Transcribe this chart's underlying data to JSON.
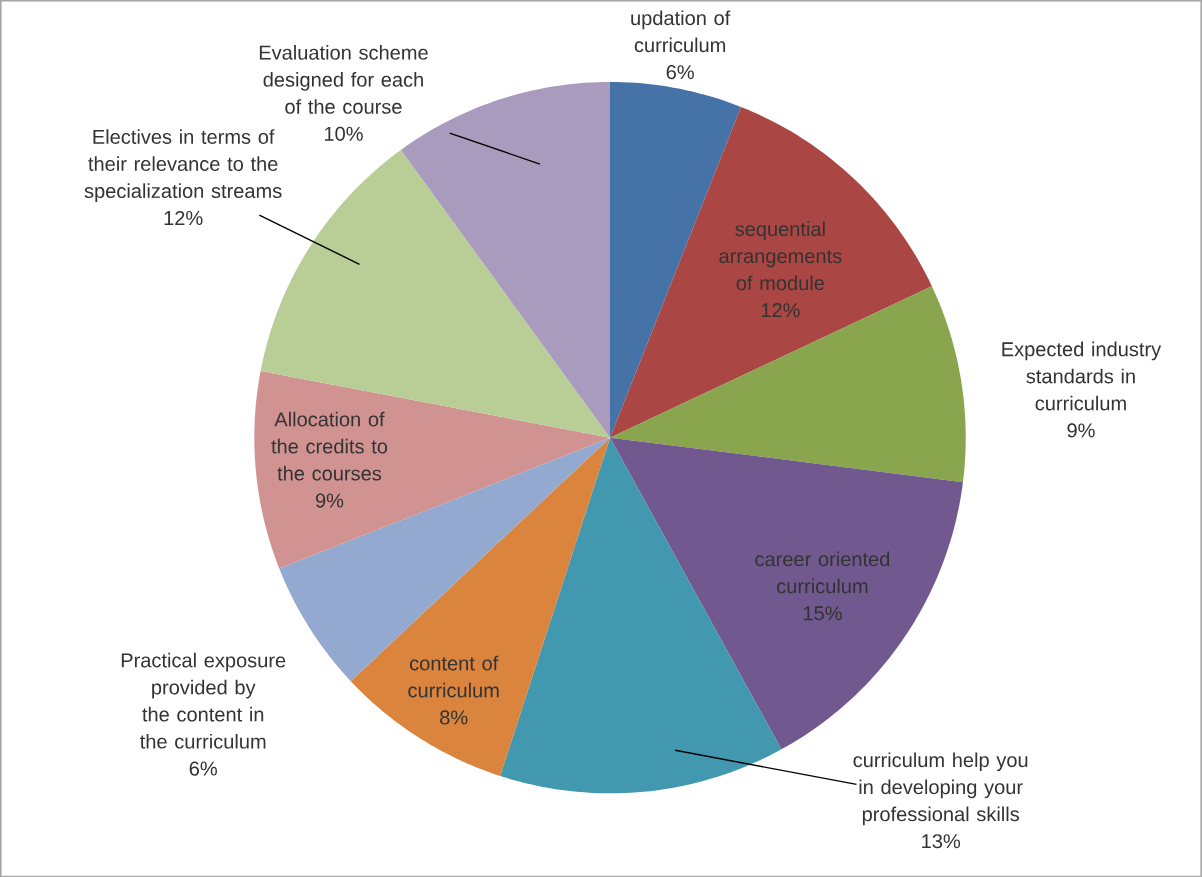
{
  "chart_data": {
    "type": "pie",
    "categories": [
      "updation of curriculum",
      "sequential arrangements of module",
      "Expected industry standards in curriculum",
      "career oriented curriculum",
      "curriculum help you in developing your professional skills",
      "content of curriculum",
      "Practical exposure provided by the content in the curriculum",
      "Allocation of the credits to the courses",
      "Electives in terms of their relevance to the specialization streams",
      "Evaluation scheme designed for each of the course"
    ],
    "values": [
      6,
      12,
      9,
      15,
      13,
      8,
      6,
      9,
      12,
      10
    ],
    "value_labels": [
      "6%",
      "12%",
      "9%",
      "15%",
      "13%",
      "8%",
      "6%",
      "9%",
      "12%",
      "10%"
    ],
    "colors": [
      "#4572a7",
      "#aa4643",
      "#89a54e",
      "#71588f",
      "#4198af",
      "#db843d",
      "#93a9cf",
      "#d19392",
      "#b9cd96",
      "#a99bbd"
    ]
  }
}
